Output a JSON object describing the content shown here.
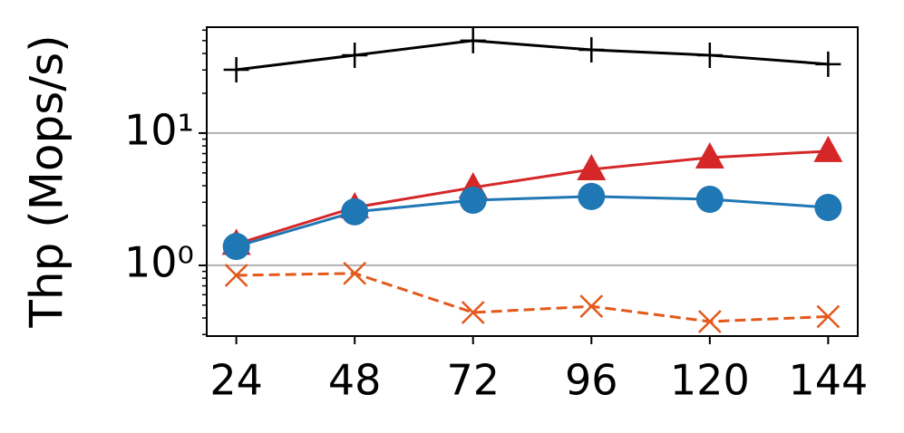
{
  "chart_data": {
    "type": "line",
    "y_label": "Thp (Mops/s)",
    "x": [
      24,
      48,
      72,
      96,
      120,
      144
    ],
    "xlim": [
      18,
      150
    ],
    "xticks": [
      24,
      48,
      72,
      96,
      120,
      144
    ],
    "ylim": [
      0.292,
      63.2
    ],
    "y_scale": "log",
    "yticks": [
      {
        "value": 1,
        "label": "10⁰"
      },
      {
        "value": 10,
        "label": "10¹"
      }
    ],
    "yminorticks": [
      0.3,
      0.4,
      0.5,
      0.6,
      0.7,
      0.8,
      0.9,
      2,
      3,
      4,
      5,
      6,
      7,
      8,
      9,
      20,
      30,
      40,
      50,
      60
    ],
    "grid": true,
    "series": [
      {
        "color": "#000000",
        "marker": "plus",
        "dash": false,
        "values": [
          30.1,
          38.8,
          50,
          42.6,
          38.8,
          33.2
        ]
      },
      {
        "color": "#d62728",
        "marker": "triangle",
        "dash": false,
        "values": [
          1.45,
          2.74,
          3.88,
          5.32,
          6.53,
          7.3
        ]
      },
      {
        "color": "#1f77b4",
        "marker": "circle",
        "dash": false,
        "values": [
          1.39,
          2.54,
          3.11,
          3.32,
          3.16,
          2.74
        ]
      },
      {
        "color": "#e4581b",
        "marker": "x",
        "dash": true,
        "values": [
          0.84,
          0.87,
          0.44,
          0.49,
          0.376,
          0.41
        ]
      }
    ]
  }
}
